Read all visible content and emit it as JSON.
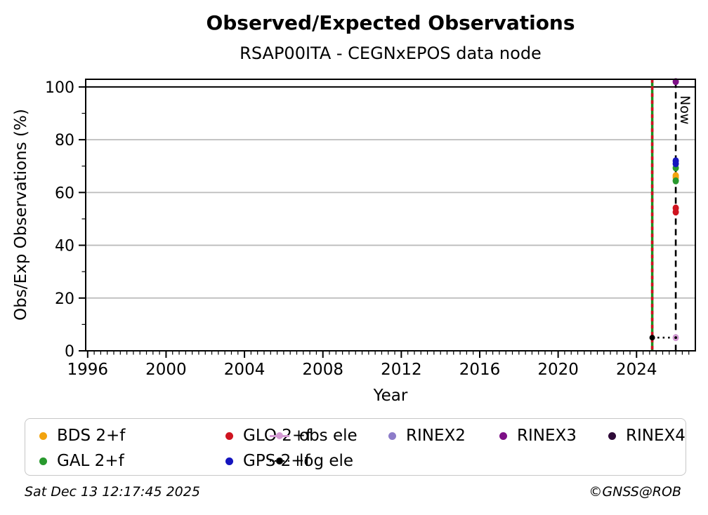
{
  "title": "Observed/Expected Observations",
  "subtitle": "RSAP00ITA - CEGNxEPOS data node",
  "footer": {
    "timestamp": "Sat Dec 13 12:17:45 2025",
    "copyright": "©GNSS@ROB"
  },
  "legend": {
    "position": "bottom",
    "items": [
      {
        "label": "BDS 2+f",
        "color": "#f2a30f",
        "marker": "dot"
      },
      {
        "label": "GLO 2+f",
        "color": "#cf1420",
        "marker": "dot"
      },
      {
        "label": "obs ele",
        "color": "#d49bd4",
        "marker": "line-dot"
      },
      {
        "label": "RINEX2",
        "color": "#8d7cc9",
        "marker": "dot"
      },
      {
        "label": "RINEX3",
        "color": "#7d1086",
        "marker": "dot"
      },
      {
        "label": "RINEX4",
        "color": "#2e0a38",
        "marker": "dot"
      },
      {
        "label": "GAL 2+f",
        "color": "#28992d",
        "marker": "dot"
      },
      {
        "label": "GPS 2+f",
        "color": "#1414be",
        "marker": "dot"
      },
      {
        "label": "log ele",
        "color": "#000000",
        "marker": "dotted-line-dot"
      }
    ]
  },
  "chart_data": {
    "type": "scatter",
    "title": "Observed/Expected Observations",
    "subtitle": "RSAP00ITA - CEGNxEPOS data node",
    "xlabel": "Year",
    "ylabel": "Obs/Exp Observations (%)",
    "xlim": [
      1995.9,
      2027.0
    ],
    "ylim": [
      0,
      102.9
    ],
    "x_major_ticks": [
      1996,
      2000,
      2004,
      2008,
      2012,
      2016,
      2020,
      2024
    ],
    "x_minor_step_years": 0.3333,
    "y_major_ticks": [
      0,
      20,
      40,
      60,
      80,
      100
    ],
    "y_minor_ticks": [
      10,
      30,
      50,
      70,
      90
    ],
    "grid_y": [
      20,
      40,
      60,
      80
    ],
    "grid_color": "#bbbbbb",
    "reference_lines": {
      "full_line_y": {
        "y": 100,
        "color": "#000000"
      },
      "event_line": {
        "x": 2024.8,
        "style": "green-red-dashed",
        "colors": [
          "#1f8f1f",
          "#d01020"
        ]
      },
      "now_line": {
        "x": 2026.0,
        "label": "Now",
        "style": "dashed",
        "color": "#000000",
        "y_top": 102
      }
    },
    "series": [
      {
        "name": "BDS 2+f",
        "color": "#f2a30f",
        "marker": "dot",
        "points": [
          [
            2026.0,
            66.4
          ],
          [
            2026.0,
            65.7
          ]
        ]
      },
      {
        "name": "GAL 2+f",
        "color": "#28992d",
        "marker": "dot",
        "points": [
          [
            2026.0,
            69.3
          ],
          [
            2026.0,
            64.4
          ]
        ]
      },
      {
        "name": "GLO 2+f",
        "color": "#cf1420",
        "marker": "dot",
        "points": [
          [
            2026.0,
            54.1
          ],
          [
            2026.0,
            52.6
          ]
        ]
      },
      {
        "name": "GPS 2+f",
        "color": "#1414be",
        "marker": "dot",
        "points": [
          [
            2026.0,
            72.0
          ],
          [
            2026.0,
            70.9
          ]
        ]
      },
      {
        "name": "RINEX2",
        "color": "#8d7cc9",
        "marker": "dot",
        "points": []
      },
      {
        "name": "RINEX3",
        "color": "#7d1086",
        "marker": "dot",
        "points": [
          [
            2026.0,
            102.0
          ]
        ]
      },
      {
        "name": "RINEX4",
        "color": "#2e0a38",
        "marker": "dot",
        "points": []
      },
      {
        "name": "obs ele",
        "color": "#d49bd4",
        "marker": "line-dot",
        "points": [
          [
            2026.0,
            5.0
          ]
        ]
      },
      {
        "name": "log ele",
        "color": "#000000",
        "marker": "dotted-line-dot",
        "line": [
          [
            2024.8,
            5.0
          ],
          [
            2026.0,
            5.0
          ]
        ]
      }
    ]
  }
}
